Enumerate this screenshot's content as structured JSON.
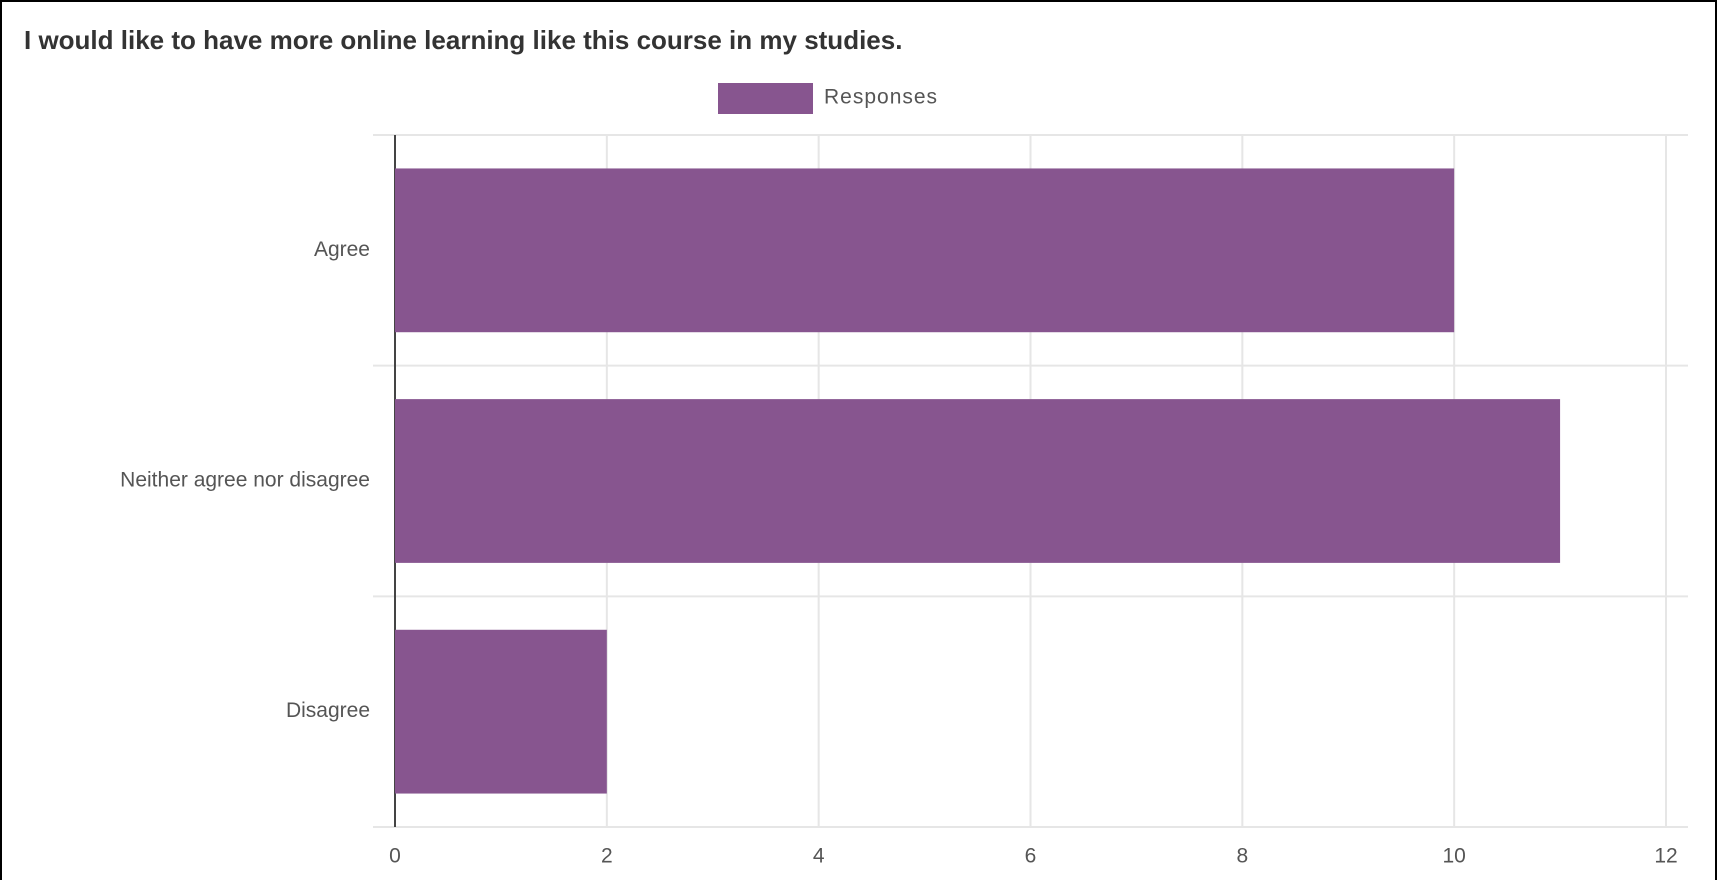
{
  "chart_data": {
    "type": "bar",
    "orientation": "horizontal",
    "title": "I would like to have more online learning like this course in my studies.",
    "categories": [
      "Agree",
      "Neither agree nor disagree",
      "Disagree"
    ],
    "series": [
      {
        "name": "Responses",
        "color": "#87558f",
        "values": [
          10,
          11,
          2
        ]
      }
    ],
    "xlim": [
      0,
      12
    ],
    "xticks": [
      0,
      2,
      4,
      6,
      8,
      10,
      12
    ],
    "grid": true,
    "legend": "top"
  }
}
